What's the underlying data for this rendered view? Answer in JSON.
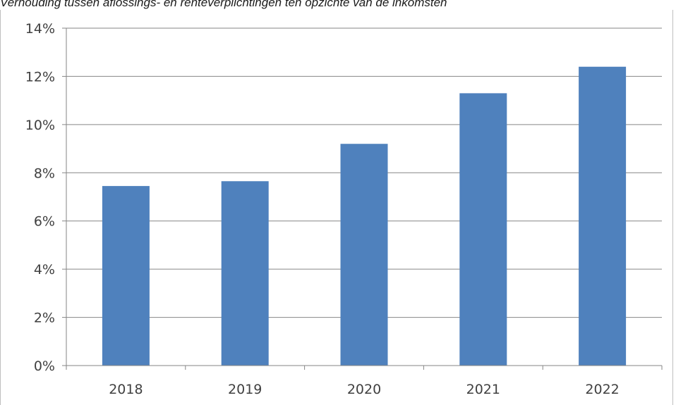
{
  "chart_data": {
    "type": "bar",
    "title": "Verhouding tussen aflossings- en renteverplichtingen ten opzichte van de inkomsten",
    "xlabel": "",
    "ylabel": "",
    "categories": [
      "2018",
      "2019",
      "2020",
      "2021",
      "2022"
    ],
    "values": [
      7.45,
      7.65,
      9.2,
      11.3,
      12.4
    ],
    "value_unit": "%",
    "ylim": [
      0,
      14
    ],
    "yticks": [
      0,
      2,
      4,
      6,
      8,
      10,
      12,
      14
    ],
    "ytick_labels": [
      "0%",
      "2%",
      "4%",
      "6%",
      "8%",
      "10%",
      "12%",
      "14%"
    ],
    "grid": true,
    "legend": "none",
    "bar_color": "#4f81bd",
    "grid_color": "#868686"
  }
}
